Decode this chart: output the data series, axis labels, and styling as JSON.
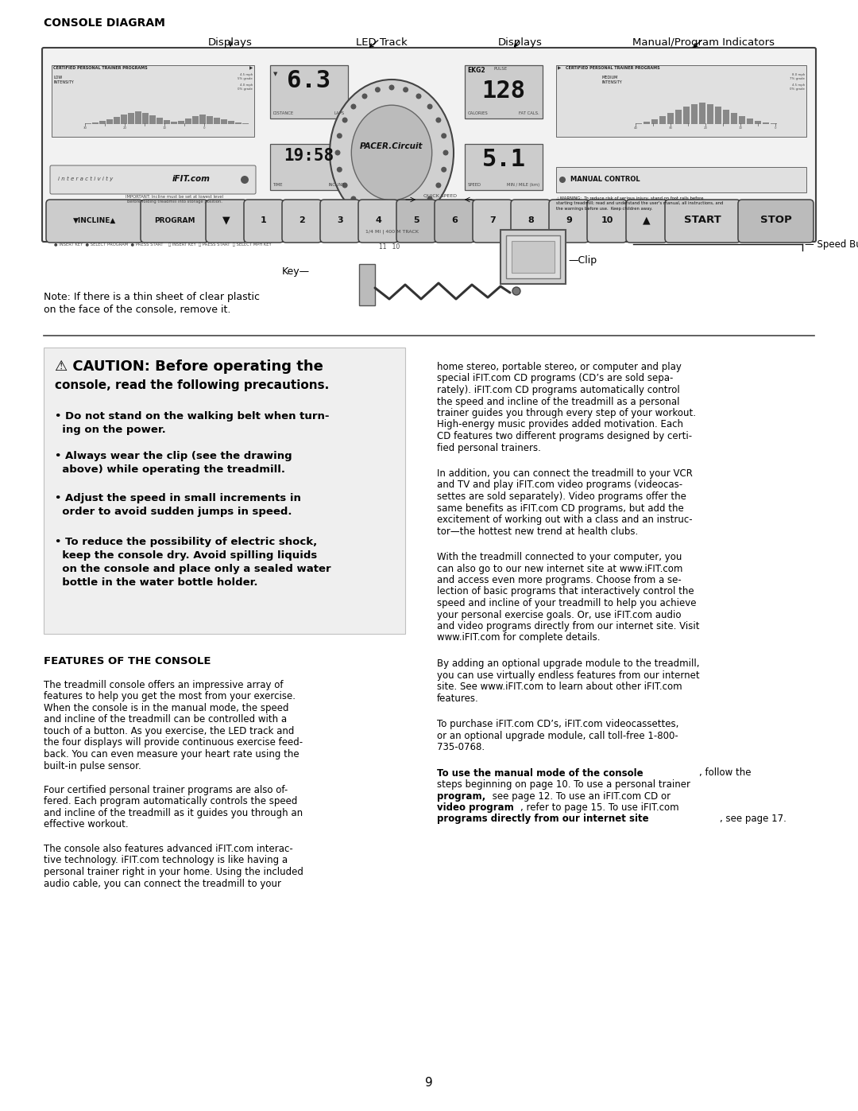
{
  "page_background": "#ffffff",
  "page_number": "9",
  "console_diagram_title": "CONSOLE DIAGRAM",
  "label_displays_left": "Displays",
  "label_led_track": "LED Track",
  "label_displays_right": "Displays",
  "label_manual_program": "Manual/Program Indicators",
  "label_speed_buttons": "Speed Buttons",
  "label_key": "Key",
  "label_clip": "Clip",
  "note_line1": "Note: If there is a thin sheet of clear plastic",
  "note_line2": "on the face of the console, remove it.",
  "caution_line1": "⚠ CAUTION: Before operating the",
  "caution_line2": "console, read the following precautions.",
  "bullet1_line1": "• Do not stand on the walking belt when turn-",
  "bullet1_line2": "  ing on the power.",
  "bullet2_line1": "• Always wear the clip (see the drawing",
  "bullet2_line2": "  above) while operating the treadmill.",
  "bullet3_line1": "• Adjust the speed in small increments in",
  "bullet3_line2": "  order to avoid sudden jumps in speed.",
  "bullet4_line1": "• To reduce the possibility of electric shock,",
  "bullet4_line2": "  keep the console dry. Avoid spilling liquids",
  "bullet4_line3": "  on the console and place only a sealed water",
  "bullet4_line4": "  bottle in the water bottle holder.",
  "features_title": "FEATURES OF THE CONSOLE",
  "feat_p1_l1": "The treadmill console offers an impressive array of",
  "feat_p1_l2": "features to help you get the most from your exercise.",
  "feat_p1_l3": "When the console is in the manual mode, the speed",
  "feat_p1_l4": "and incline of the treadmill can be controlled with a",
  "feat_p1_l5": "touch of a button. As you exercise, the LED track and",
  "feat_p1_l6": "the four displays will provide continuous exercise feed-",
  "feat_p1_l7": "back. You can even measure your heart rate using the",
  "feat_p1_l8": "built-in pulse sensor.",
  "feat_p2_l1": "Four certified personal trainer programs are also of-",
  "feat_p2_l2": "fered. Each program automatically controls the speed",
  "feat_p2_l3": "and incline of the treadmill as it guides you through an",
  "feat_p2_l4": "effective workout.",
  "feat_p3_l1": "The console also features advanced iFIT.com interac-",
  "feat_p3_l2": "tive technology. iFIT.com technology is like having a",
  "feat_p3_l3": "personal trainer right in your home. Using the included",
  "feat_p3_l4": "audio cable, you can connect the treadmill to your",
  "right_p1_l1": "home stereo, portable stereo, or computer and play",
  "right_p1_l2": "special iFIT.com CD programs (CD’s are sold sepa-",
  "right_p1_l3": "rately). iFIT.com CD programs automatically control",
  "right_p1_l4": "the speed and incline of the treadmill as a personal",
  "right_p1_l5": "trainer guides you through every step of your workout.",
  "right_p1_l6": "High-energy music provides added motivation. Each",
  "right_p1_l7": "CD features two different programs designed by certi-",
  "right_p1_l8": "fied personal trainers.",
  "right_p2_l1": "In addition, you can connect the treadmill to your VCR",
  "right_p2_l2": "and TV and play iFIT.com video programs (videocas-",
  "right_p2_l3": "settes are sold separately). Video programs offer the",
  "right_p2_l4": "same benefits as iFIT.com CD programs, but add the",
  "right_p2_l5": "excitement of working out with a class and an instruc-",
  "right_p2_l6": "tor—the hottest new trend at health clubs.",
  "right_p3_l1": "With the treadmill connected to your computer, you",
  "right_p3_l2": "can also go to our new internet site at www.iFIT.com",
  "right_p3_l3": "and access even more programs. Choose from a se-",
  "right_p3_l4": "lection of basic programs that interactively control the",
  "right_p3_l5": "speed and incline of your treadmill to help you achieve",
  "right_p3_l6": "your personal exercise goals. Or, use iFIT.com audio",
  "right_p3_l7": "and video programs directly from our internet site. Visit",
  "right_p3_l8": "www.iFIT.com for complete details.",
  "right_p4_l1": "By adding an optional upgrade module to the treadmill,",
  "right_p4_l2": "you can use virtually endless features from our internet",
  "right_p4_l3": "site. See www.iFIT.com to learn about other iFIT.com",
  "right_p4_l4": "features.",
  "right_p5_l1": "To purchase iFIT.com CD’s, iFIT.com videocassettes,",
  "right_p5_l2": "or an optional upgrade module, call toll-free 1-800-",
  "right_p5_l3": "735-0768.",
  "right_p6_l1_bold": "To use the manual mode of the console",
  "right_p6_l1_norm": ", follow the",
  "right_p6_l2": "steps beginning on page 10. ",
  "right_p6_l2b": "To use a personal trainer",
  "right_p6_l3b": "program,",
  "right_p6_l3n": " see page 12. ",
  "right_p6_l3b2": "To use an iFIT.com CD or",
  "right_p6_l4b": "video program",
  "right_p6_l4n": ", refer to page 15. ",
  "right_p6_l4b2": "To use iFIT.com",
  "right_p6_l5b": "programs directly from our internet site",
  "right_p6_l5n": ", see page 17."
}
